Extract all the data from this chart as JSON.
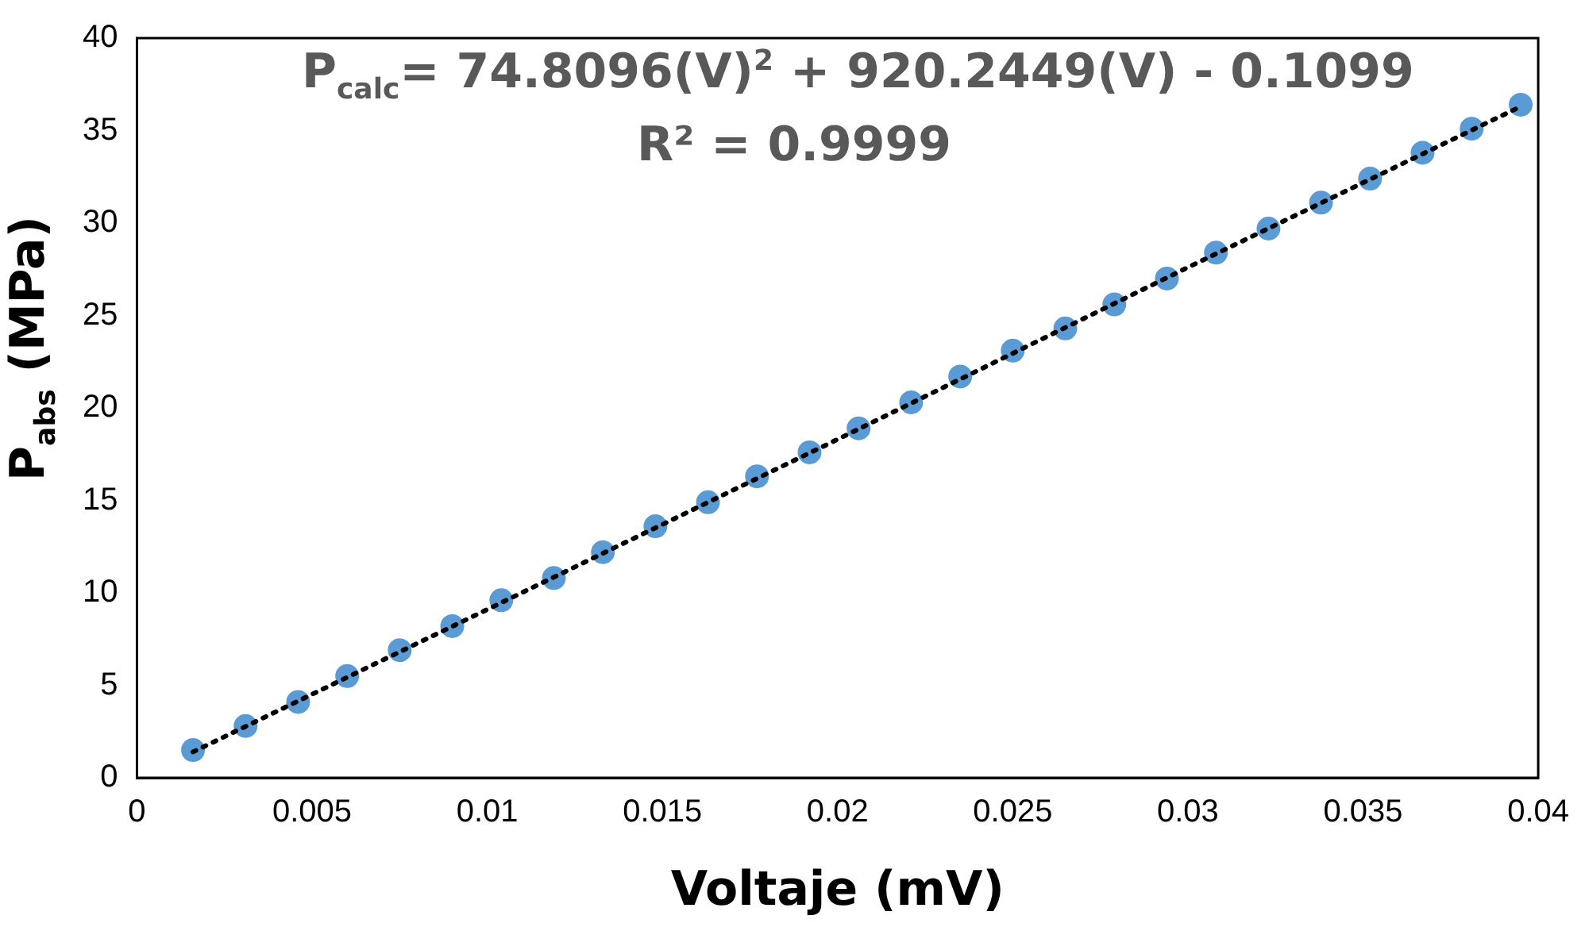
{
  "chart_data": {
    "type": "scatter",
    "xlabel": "Voltaje (mV)",
    "ylabel": "P$_{abs}$ (MPa)",
    "annotations": [
      "P$_{calc}$= 74.8096(V)$^{2}$ + 920.2449(V) - 0.1099",
      "R² = 0.9999"
    ],
    "x": [
      0.0016,
      0.0031,
      0.0046,
      0.006,
      0.0075,
      0.009,
      0.0104,
      0.0119,
      0.0133,
      0.0148,
      0.0163,
      0.0177,
      0.0192,
      0.0206,
      0.0221,
      0.0235,
      0.025,
      0.0265,
      0.0279,
      0.0294,
      0.0308,
      0.0323,
      0.0338,
      0.0352,
      0.0367,
      0.0381,
      0.0395
    ],
    "series": [
      {
        "color": "#5b9bd5",
        "marker": "circle",
        "values": [
          1.5,
          2.8,
          4.1,
          5.5,
          6.9,
          8.2,
          9.6,
          10.8,
          12.2,
          13.6,
          14.9,
          16.3,
          17.6,
          18.9,
          20.3,
          21.7,
          23.1,
          24.3,
          25.6,
          27.0,
          28.4,
          29.7,
          31.1,
          32.4,
          33.8,
          35.1,
          36.4
        ]
      },
      {
        "type": "line",
        "color": "#000000",
        "line_style": "dotted",
        "marker": "none",
        "x": [
          0.0016,
          0.01,
          0.02,
          0.03,
          0.0395
        ],
        "values": [
          1.4,
          9.1,
          18.3,
          27.6,
          36.3
        ]
      }
    ],
    "xlim": [
      0,
      0.04
    ],
    "xticks": [
      0,
      0.005,
      0.01,
      0.015,
      0.02,
      0.025,
      0.03,
      0.035,
      0.04
    ],
    "ylim": [
      0,
      40
    ],
    "yticks": [
      0,
      5,
      10,
      15,
      20,
      25,
      30,
      35,
      40
    ],
    "grid": false,
    "legend": false
  }
}
